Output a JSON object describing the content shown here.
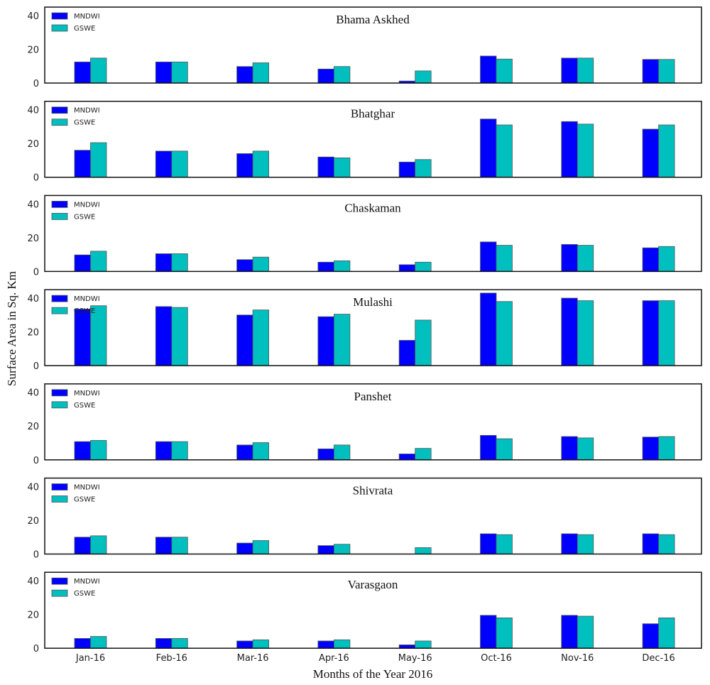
{
  "figure": {
    "xlabel": "Months of the Year 2016",
    "ylabel": "Surface Area in Sq. Km"
  },
  "chart_data": {
    "type": "bar",
    "categories": [
      "Jan-16",
      "Feb-16",
      "Mar-16",
      "Apr-16",
      "May-16",
      "Oct-16",
      "Nov-16",
      "Dec-16"
    ],
    "ylim": [
      0,
      45
    ],
    "yticks": [
      0,
      20,
      40
    ],
    "grid": false,
    "legend_placement": "top-left",
    "colors": {
      "MNDWI": "#0000ff",
      "GSWE": "#00bfbf"
    },
    "panels": [
      {
        "title": "Bhama Askhed",
        "series": [
          {
            "name": "MNDWI",
            "values": [
              12.5,
              12.5,
              9.8,
              8.3,
              1.2,
              16.0,
              14.8,
              14.0
            ]
          },
          {
            "name": "GSWE",
            "values": [
              14.8,
              12.5,
              12.0,
              9.8,
              7.2,
              14.2,
              14.8,
              14.0
            ]
          }
        ]
      },
      {
        "title": "Bhatghar",
        "series": [
          {
            "name": "MNDWI",
            "values": [
              16.0,
              15.5,
              14.0,
              12.0,
              9.0,
              34.5,
              33.0,
              28.5
            ]
          },
          {
            "name": "GSWE",
            "values": [
              20.5,
              15.5,
              15.5,
              11.5,
              10.5,
              31.0,
              31.5,
              31.0
            ]
          }
        ]
      },
      {
        "title": "Chaskaman",
        "series": [
          {
            "name": "MNDWI",
            "values": [
              9.8,
              10.5,
              7.0,
              5.5,
              4.0,
              17.5,
              16.0,
              14.0
            ]
          },
          {
            "name": "GSWE",
            "values": [
              12.0,
              10.5,
              8.5,
              6.3,
              5.5,
              15.5,
              15.5,
              14.8
            ]
          }
        ]
      },
      {
        "title": "Mulashi",
        "series": [
          {
            "name": "MNDWI",
            "values": [
              33.5,
              35.0,
              30.0,
              29.0,
              15.0,
              43.0,
              40.0,
              38.5
            ]
          },
          {
            "name": "GSWE",
            "values": [
              35.5,
              34.5,
              33.0,
              30.5,
              27.0,
              38.0,
              38.5,
              38.5
            ]
          }
        ]
      },
      {
        "title": "Panshet",
        "series": [
          {
            "name": "MNDWI",
            "values": [
              10.8,
              10.8,
              8.8,
              6.5,
              3.5,
              14.5,
              13.8,
              13.5
            ]
          },
          {
            "name": "GSWE",
            "values": [
              11.5,
              10.8,
              10.2,
              8.8,
              6.8,
              12.5,
              13.0,
              13.8
            ]
          }
        ]
      },
      {
        "title": "Shivrata",
        "series": [
          {
            "name": "MNDWI",
            "values": [
              10.0,
              10.0,
              6.5,
              5.0,
              0.0,
              12.0,
              12.0,
              12.0
            ]
          },
          {
            "name": "GSWE",
            "values": [
              10.8,
              10.0,
              8.0,
              5.8,
              3.8,
              11.5,
              11.5,
              11.5
            ]
          }
        ]
      },
      {
        "title": "Varasgaon",
        "series": [
          {
            "name": "MNDWI",
            "values": [
              5.8,
              5.8,
              4.3,
              4.3,
              2.0,
              19.5,
              19.5,
              14.5
            ]
          },
          {
            "name": "GSWE",
            "values": [
              7.0,
              5.8,
              5.0,
              5.0,
              4.3,
              18.0,
              19.0,
              18.0
            ]
          }
        ]
      }
    ]
  }
}
